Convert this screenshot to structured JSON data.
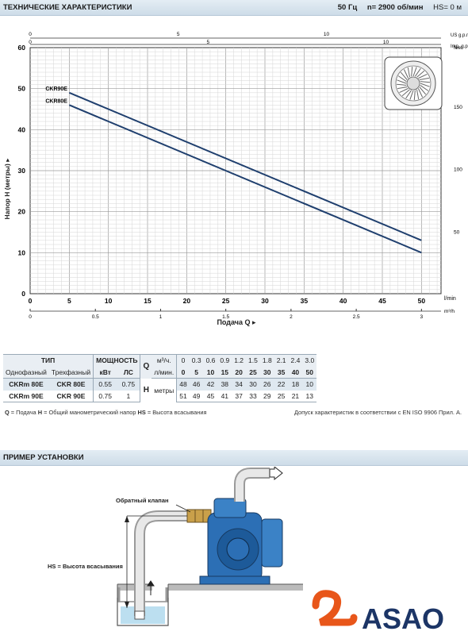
{
  "header": {
    "title": "ТЕХНИЧЕСКИЕ ХАРАКТЕРИСТИКИ",
    "freq": "50 Гц",
    "speed": "n= 2900 об/мин",
    "hs": "HS= 0 м"
  },
  "chart_data": {
    "type": "line",
    "ylabel": "Напор H (метры) ▸",
    "xlabel": "Подача Q ▸",
    "x_unit_bottom": "l/min",
    "x_unit_m3h": "m³/h",
    "x_unit_usgpm": "US g.p.m.",
    "x_unit_impgpm": "Imp. g.p.m.",
    "y_unit_right": "feet",
    "xlim": [
      0,
      52.5
    ],
    "ylim": [
      0,
      60
    ],
    "x_ticks": [
      "0",
      "5",
      "10",
      "15",
      "20",
      "25",
      "30",
      "35",
      "40",
      "45",
      "50"
    ],
    "y_ticks": [
      "0",
      "10",
      "20",
      "30",
      "40",
      "50",
      "60"
    ],
    "m3h_ticks": [
      "0",
      "0.5",
      "1",
      "1.5",
      "2",
      "2.5",
      "3"
    ],
    "usgpm_ticks": [
      "0",
      "5",
      "10"
    ],
    "impgpm_ticks": [
      "0",
      "5",
      "10"
    ],
    "feet_ticks": [
      "50",
      "100",
      "150"
    ],
    "series": [
      {
        "name": "CKR90E",
        "x": [
          5,
          50
        ],
        "y": [
          49,
          13
        ]
      },
      {
        "name": "CKR80E",
        "x": [
          5,
          50
        ],
        "y": [
          46,
          10
        ]
      }
    ],
    "line_color": "#1f3f6e"
  },
  "table": {
    "type_label": "ТИП",
    "power_label": "МОЩНОСТЬ",
    "q_label": "Q",
    "m3h_label": "м³/ч.",
    "lmin_label": "л/мин.",
    "single_phase": "Однофазный",
    "three_phase": "Трехфазный",
    "kw": "кВт",
    "hp": "ЛС",
    "h_label": "H",
    "metres": "метры",
    "m3h_values": [
      "0",
      "0.3",
      "0.6",
      "0.9",
      "1.2",
      "1.5",
      "1.8",
      "2.1",
      "2.4",
      "3.0"
    ],
    "lmin_values": [
      "0",
      "5",
      "10",
      "15",
      "20",
      "25",
      "30",
      "35",
      "40",
      "50"
    ],
    "rows": [
      {
        "single": "CKRm 80E",
        "three": "CKR 80E",
        "kw": "0.55",
        "hp": "0.75",
        "h": [
          "48",
          "46",
          "42",
          "38",
          "34",
          "30",
          "26",
          "22",
          "18",
          "10"
        ]
      },
      {
        "single": "CKRm 90E",
        "three": "CKR 90E",
        "kw": "0.75",
        "hp": "1",
        "h": [
          "51",
          "49",
          "45",
          "41",
          "37",
          "33",
          "29",
          "25",
          "21",
          "13"
        ]
      }
    ]
  },
  "notes": {
    "q_key": "Q",
    "q_text": " = Подача ",
    "h_key": "H",
    "h_text": " = Общий манометрический напор ",
    "hs_key": "HS",
    "hs_text": " = Высота всасывания",
    "tolerance": "Допуск характеристик в соответствии с EN ISO 9906 Прил. А."
  },
  "install": {
    "title": "ПРИМЕР УСТАНОВКИ",
    "check_valve": "Обратный клапан",
    "hs_label": "HS = Высота всасывания"
  },
  "logo": {
    "text": "ASAO",
    "colors": {
      "orange": "#e8561a",
      "navy": "#1c3566"
    }
  }
}
